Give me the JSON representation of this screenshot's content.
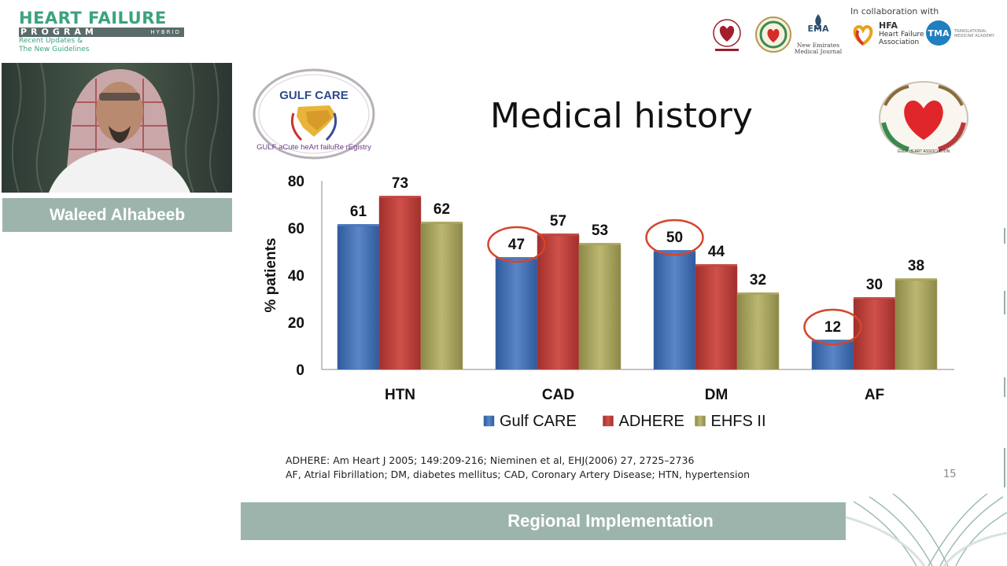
{
  "branding": {
    "title": "HEART FAILURE",
    "program": "PROGRAM",
    "hybrid": "HYBRID",
    "line1": "Recent Updates &",
    "line2": "The New Guidelines"
  },
  "partners": {
    "collab_text": "In collaboration with",
    "ema_title": "EMA",
    "ema_caption_1": "New Emirates",
    "ema_caption_2": "Medical Journal",
    "hfa_title": "HFA",
    "hfa_line1": "Heart Failure",
    "hfa_line2": "Association",
    "tma_title": "TMA",
    "tma_line1": "TRANSLATIONAL",
    "tma_line2": "MEDICINE ACADEMY"
  },
  "speaker": {
    "name": "Waleed Alhabeeb"
  },
  "slide": {
    "title": "Medical history",
    "gulfcare_logo_text": "GULF CARE",
    "gulfcare_arc_text": "GULF aCute heArt failuRe rEgistry",
    "gha_arc_text": "GULF HEART ASSOCIATION",
    "reference_1": "ADHERE: Am Heart J 2005; 149:209-216; Nieminen et al, EHJ(2006) 27, 2725–2736",
    "reference_2": "AF, Atrial Fibrillation; DM, diabetes mellitus; CAD, Coronary Artery Disease; HTN, hypertension",
    "page_number": "15"
  },
  "footer": {
    "label": "Regional Implementation"
  },
  "colors": {
    "brand_green": "#3aa37f",
    "bar_bar": "#9db4ad",
    "gulf_care": "#4471b6",
    "adhere": "#c0403a",
    "ehfs": "#a6a25a",
    "highlight_circle": "#d4452b"
  },
  "chart_data": {
    "type": "bar",
    "title": "",
    "xlabel": "",
    "ylabel": "% patients",
    "ylim": [
      0,
      80
    ],
    "yticks": [
      0,
      20,
      40,
      60,
      80
    ],
    "grid": false,
    "legend_position": "bottom",
    "categories": [
      "HTN",
      "CAD",
      "DM",
      "AF"
    ],
    "series": [
      {
        "name": "Gulf CARE",
        "values": [
          61,
          47,
          50,
          12
        ],
        "color": "#4471b6"
      },
      {
        "name": "ADHERE",
        "values": [
          73,
          57,
          44,
          30
        ],
        "color": "#c0403a"
      },
      {
        "name": "EHFS II",
        "values": [
          62,
          53,
          32,
          38
        ],
        "color": "#a6a25a"
      }
    ],
    "highlighted": [
      {
        "series": "Gulf CARE",
        "category": "CAD"
      },
      {
        "series": "Gulf CARE",
        "category": "DM"
      },
      {
        "series": "Gulf CARE",
        "category": "AF"
      }
    ]
  }
}
